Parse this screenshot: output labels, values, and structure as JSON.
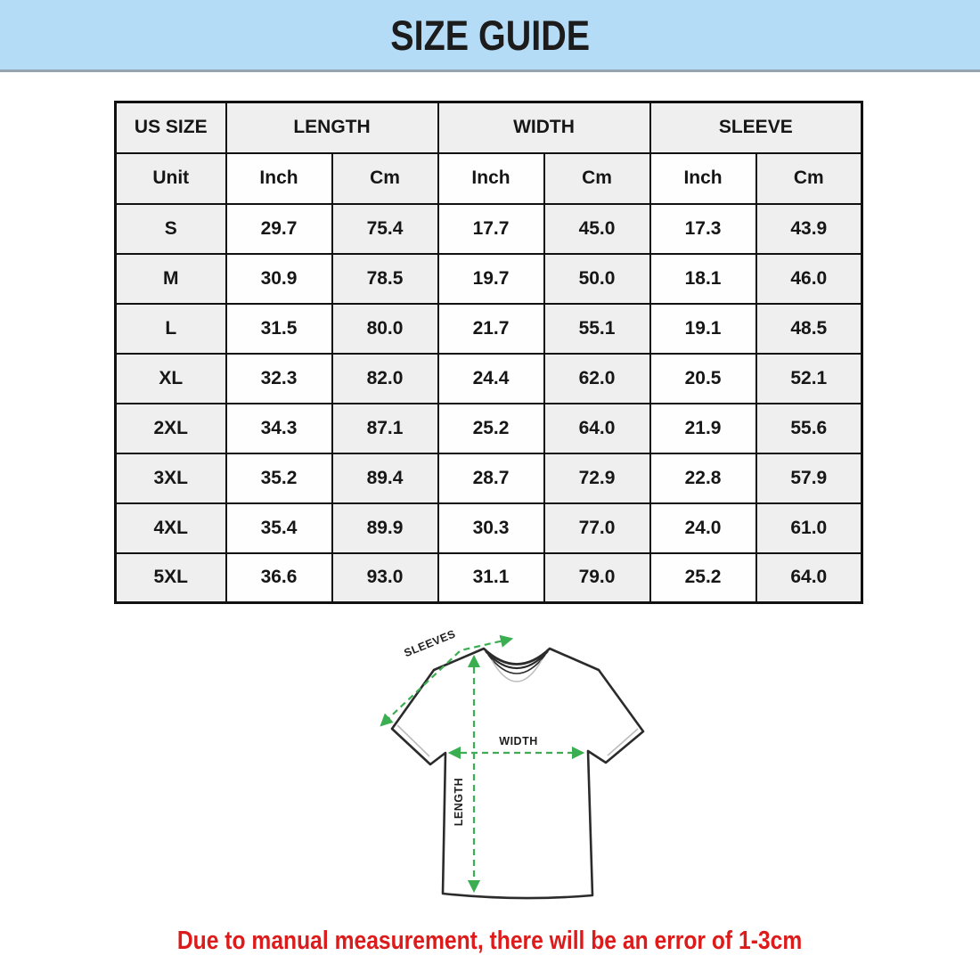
{
  "banner": {
    "title": "SIZE GUIDE"
  },
  "table": {
    "group_headers": [
      {
        "label": "US SIZE"
      },
      {
        "label": "LENGTH"
      },
      {
        "label": "WIDTH"
      },
      {
        "label": "SLEEVE"
      }
    ],
    "unit_row": [
      "Unit",
      "Inch",
      "Cm",
      "Inch",
      "Cm",
      "Inch",
      "Cm"
    ],
    "rows": [
      {
        "size": "S",
        "values": [
          "29.7",
          "75.4",
          "17.7",
          "45.0",
          "17.3",
          "43.9"
        ]
      },
      {
        "size": "M",
        "values": [
          "30.9",
          "78.5",
          "19.7",
          "50.0",
          "18.1",
          "46.0"
        ]
      },
      {
        "size": "L",
        "values": [
          "31.5",
          "80.0",
          "21.7",
          "55.1",
          "19.1",
          "48.5"
        ]
      },
      {
        "size": "XL",
        "values": [
          "32.3",
          "82.0",
          "24.4",
          "62.0",
          "20.5",
          "52.1"
        ]
      },
      {
        "size": "2XL",
        "values": [
          "34.3",
          "87.1",
          "25.2",
          "64.0",
          "21.9",
          "55.6"
        ]
      },
      {
        "size": "3XL",
        "values": [
          "35.2",
          "89.4",
          "28.7",
          "72.9",
          "22.8",
          "57.9"
        ]
      },
      {
        "size": "4XL",
        "values": [
          "35.4",
          "89.9",
          "30.3",
          "77.0",
          "24.0",
          "61.0"
        ]
      },
      {
        "size": "5XL",
        "values": [
          "36.6",
          "93.0",
          "31.1",
          "79.0",
          "25.2",
          "64.0"
        ]
      }
    ]
  },
  "diagram": {
    "sleeve_label": "SLEEVES",
    "width_label": "WIDTH",
    "length_label": "LENGTH"
  },
  "footer": {
    "note": "Due to manual measurement, there will be an error of 1-3cm"
  },
  "colors": {
    "banner_blue": "#b5dcf6",
    "cell_gray": "#efefef",
    "arrow_green": "#3cae52",
    "note_red": "#dd1b1b",
    "outline_dark": "#2b2b2b"
  }
}
